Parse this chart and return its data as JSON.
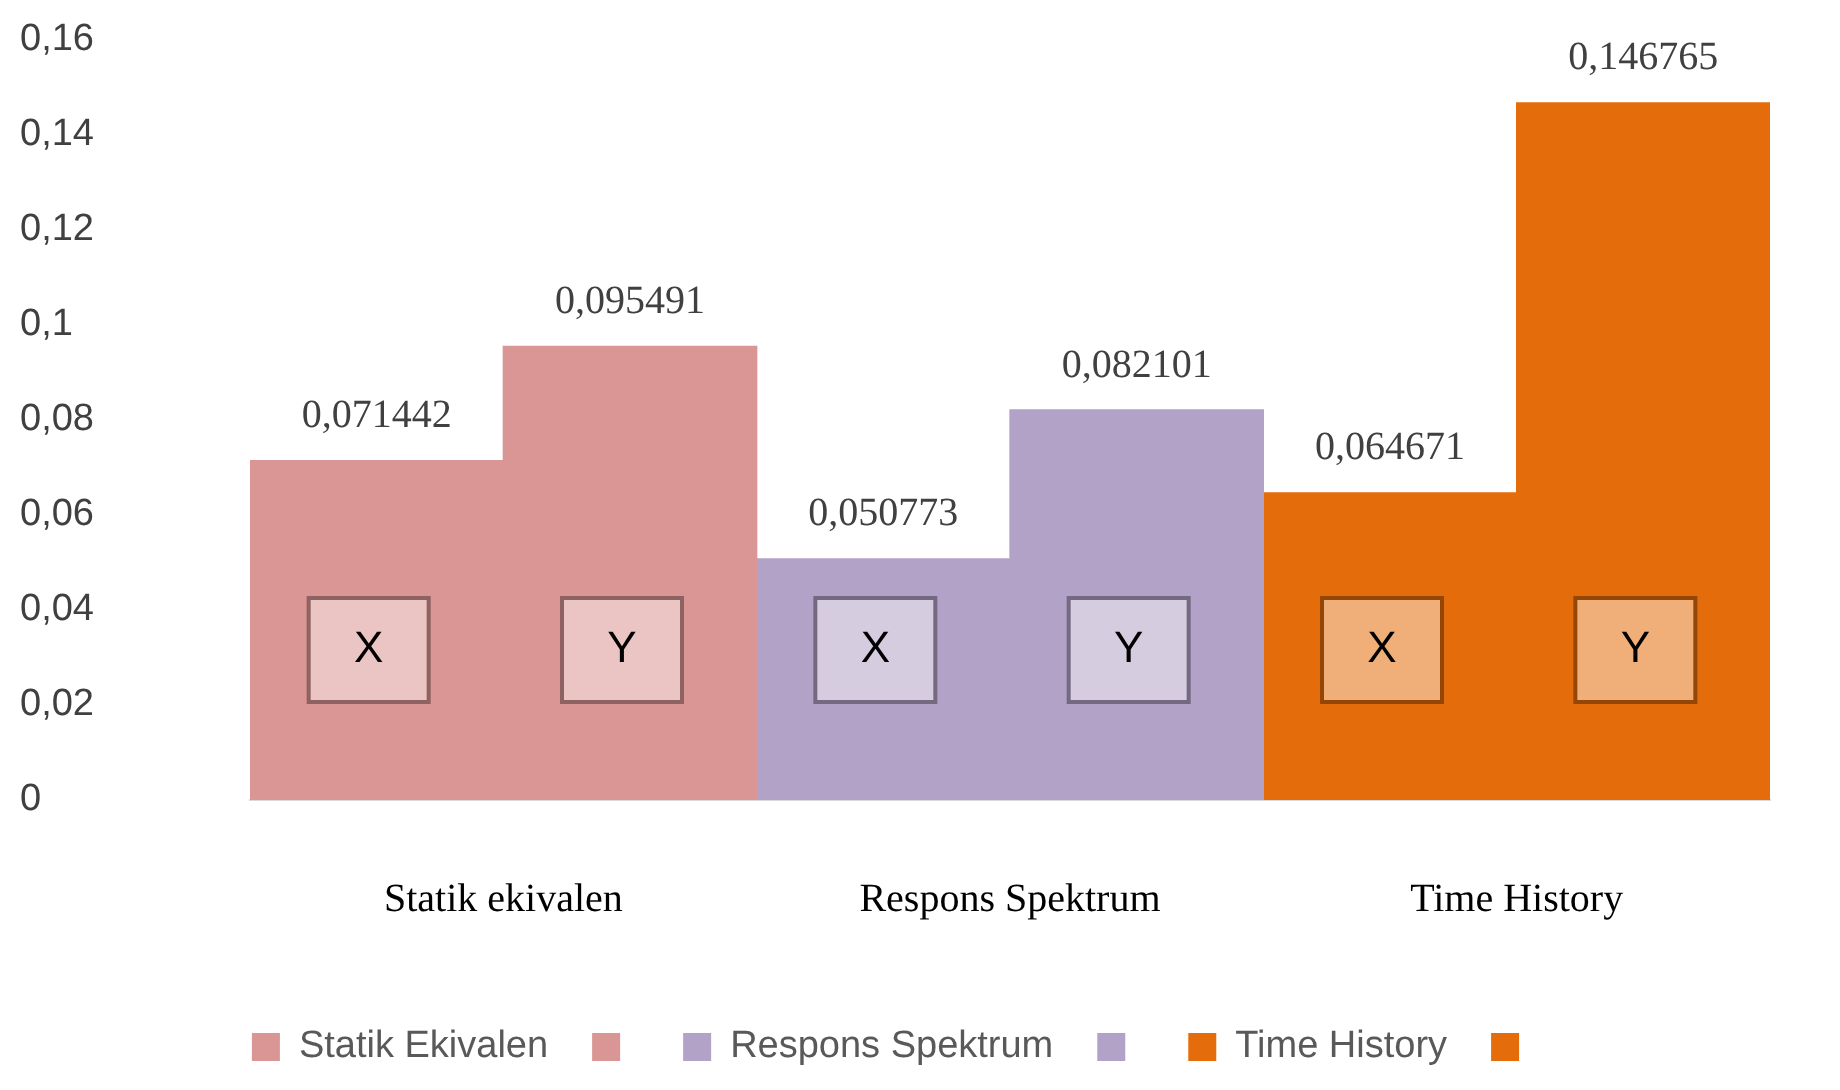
{
  "chart_data": {
    "type": "bar",
    "categories": [
      "Statik ekivalen",
      "Respons Spektrum",
      "Time History"
    ],
    "series": [
      {
        "name": "Statik Ekivalen",
        "color": "#d99694",
        "values": [
          0.071442,
          null,
          null
        ],
        "value_labels": [
          "0,071442",
          null,
          null
        ]
      },
      {
        "color": "#d99694",
        "values": [
          0.095491,
          null,
          null
        ],
        "value_labels": [
          "0,095491",
          null,
          null
        ]
      },
      {
        "name": "Respons Spektrum",
        "color": "#b3a2c7",
        "values": [
          null,
          0.050773,
          null
        ],
        "value_labels": [
          null,
          "0,050773",
          null
        ]
      },
      {
        "color": "#b3a2c7",
        "values": [
          null,
          0.082101,
          null
        ],
        "value_labels": [
          null,
          "0,082101",
          null
        ]
      },
      {
        "name": "Time History",
        "color": "#e46c0a",
        "values": [
          null,
          null,
          0.064671
        ],
        "value_labels": [
          null,
          null,
          "0,064671"
        ]
      },
      {
        "color": "#e46c0a",
        "values": [
          null,
          null,
          0.146765
        ],
        "value_labels": [
          null,
          null,
          "0,146765"
        ]
      }
    ],
    "ylim": [
      0,
      0.16
    ],
    "yticks": [
      0,
      {
        "value": 0.02,
        "label": "0,02"
      },
      {
        "value": 0.04,
        "label": "0,04"
      },
      {
        "value": 0.06,
        "label": "0,06"
      },
      {
        "value": 0.08,
        "label": "0,08"
      },
      {
        "value": 0.1,
        "label": "0,1"
      },
      {
        "value": 0.12,
        "label": "0,12"
      },
      {
        "value": 0.14,
        "label": "0,14"
      },
      {
        "value": 0.16,
        "label": "0,16"
      }
    ],
    "annotations": [
      "X",
      "Y",
      "X",
      "Y",
      "X",
      "Y"
    ],
    "grid": false,
    "legend": "bottom"
  }
}
